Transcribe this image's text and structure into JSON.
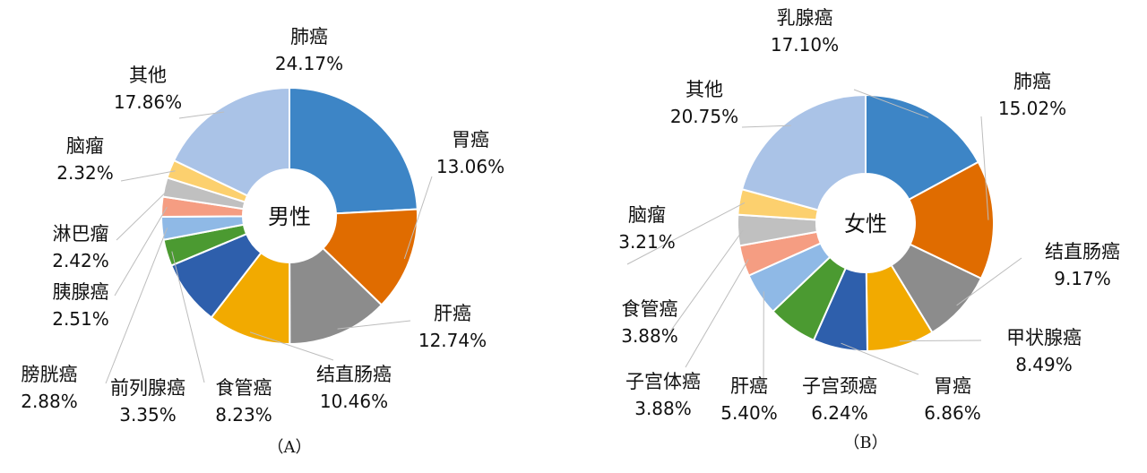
{
  "chart_data": [
    {
      "type": "pie",
      "variant": "donut",
      "center_label": "男性",
      "caption": "（A）",
      "start": "top, clockwise",
      "slices": [
        {
          "label": "肺癌",
          "value": 24.17,
          "value_text": "24.17%",
          "color": "#3d85c6"
        },
        {
          "label": "胃癌",
          "value": 13.06,
          "value_text": "13.06%",
          "color": "#e06c00"
        },
        {
          "label": "肝癌",
          "value": 12.74,
          "value_text": "12.74%",
          "color": "#8c8c8c"
        },
        {
          "label": "结直肠癌",
          "value": 10.46,
          "value_text": "10.46%",
          "color": "#f2aa00"
        },
        {
          "label": "食管癌",
          "value": 8.23,
          "value_text": "8.23%",
          "color": "#2e5fac"
        },
        {
          "label": "前列腺癌",
          "value": 3.35,
          "value_text": "3.35%",
          "color": "#4b9a31"
        },
        {
          "label": "膀胱癌",
          "value": 2.88,
          "value_text": "2.88%",
          "color": "#8fb9e6"
        },
        {
          "label": "胰腺癌",
          "value": 2.51,
          "value_text": "2.51%",
          "color": "#f59d82"
        },
        {
          "label": "淋巴瘤",
          "value": 2.42,
          "value_text": "2.42%",
          "color": "#c0c0c0"
        },
        {
          "label": "脑瘤",
          "value": 2.32,
          "value_text": "2.32%",
          "color": "#fcd06e"
        },
        {
          "label": "其他",
          "value": 17.86,
          "value_text": "17.86%",
          "color": "#aac3e7"
        }
      ]
    },
    {
      "type": "pie",
      "variant": "donut",
      "center_label": "女性",
      "caption": "（B）",
      "start": "top, clockwise",
      "slices": [
        {
          "label": "乳腺癌",
          "value": 17.1,
          "value_text": "17.10%",
          "color": "#3d85c6"
        },
        {
          "label": "肺癌",
          "value": 15.02,
          "value_text": "15.02%",
          "color": "#e06c00"
        },
        {
          "label": "结直肠癌",
          "value": 9.17,
          "value_text": "9.17%",
          "color": "#8c8c8c"
        },
        {
          "label": "甲状腺癌",
          "value": 8.49,
          "value_text": "8.49%",
          "color": "#f2aa00"
        },
        {
          "label": "胃癌",
          "value": 6.86,
          "value_text": "6.86%",
          "color": "#2e5fac"
        },
        {
          "label": "子宫颈癌",
          "value": 6.24,
          "value_text": "6.24%",
          "color": "#4b9a31"
        },
        {
          "label": "肝癌",
          "value": 5.4,
          "value_text": "5.40%",
          "color": "#8fb9e6"
        },
        {
          "label": "子宫体癌",
          "value": 3.88,
          "value_text": "3.88%",
          "color": "#f59d82"
        },
        {
          "label": "食管癌",
          "value": 3.88,
          "value_text": "3.88%",
          "color": "#c0c0c0"
        },
        {
          "label": "脑瘤",
          "value": 3.21,
          "value_text": "3.21%",
          "color": "#fcd06e"
        },
        {
          "label": "其他",
          "value": 20.75,
          "value_text": "20.75%",
          "color": "#aac3e7"
        }
      ]
    }
  ]
}
